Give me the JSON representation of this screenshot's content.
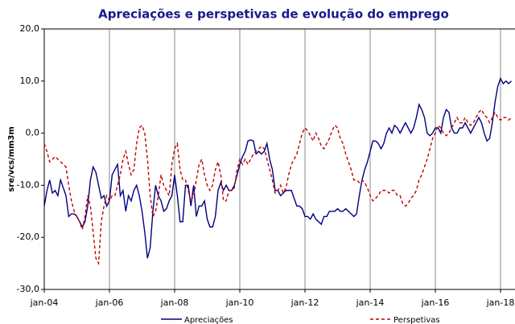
{
  "chart_data": {
    "type": "line",
    "title": "Apreciações e perspetivas de evolução do emprego",
    "y_label": "sre/vcs/mm3m",
    "categories": [
      "jan-04",
      null,
      null,
      null,
      null,
      null,
      null,
      null,
      null,
      null,
      null,
      null,
      null,
      null,
      null,
      null,
      null,
      null,
      null,
      null,
      null,
      null,
      null,
      null,
      "jan-06",
      null,
      null,
      null,
      null,
      null,
      null,
      null,
      null,
      null,
      null,
      null,
      null,
      null,
      null,
      null,
      null,
      null,
      null,
      null,
      null,
      null,
      null,
      null,
      "jan-08",
      null,
      null,
      null,
      null,
      null,
      null,
      null,
      null,
      null,
      null,
      null,
      null,
      null,
      null,
      null,
      null,
      null,
      null,
      null,
      null,
      null,
      null,
      null,
      "jan-10",
      null,
      null,
      null,
      null,
      null,
      null,
      null,
      null,
      null,
      null,
      null,
      null,
      null,
      null,
      null,
      null,
      null,
      null,
      null,
      null,
      null,
      null,
      null,
      "jan-12",
      null,
      null,
      null,
      null,
      null,
      null,
      null,
      null,
      null,
      null,
      null,
      null,
      null,
      null,
      null,
      null,
      null,
      null,
      null,
      null,
      null,
      null,
      null,
      "jan-14",
      null,
      null,
      null,
      null,
      null,
      null,
      null,
      null,
      null,
      null,
      null,
      null,
      null,
      null,
      null,
      null,
      null,
      null,
      null,
      null,
      null,
      null,
      null,
      "jan-16",
      null,
      null,
      null,
      null,
      null,
      null,
      null,
      null,
      null,
      null,
      null,
      null,
      null,
      null,
      null,
      null,
      null,
      null,
      null,
      null,
      null,
      null,
      null,
      "jan-18",
      null,
      null,
      null,
      null
    ],
    "series": [
      {
        "name": "Apreciações",
        "color": "#000080",
        "dash": false,
        "values": [
          -14,
          -11,
          -9,
          -11.5,
          -11,
          -12,
          -9,
          -10.5,
          -12,
          -16,
          -15.5,
          -15.5,
          -16,
          -17,
          -18,
          -17,
          -14,
          -9,
          -6.5,
          -7.5,
          -10,
          -12.5,
          -12,
          -14,
          -13,
          -8,
          -7,
          -6,
          -12,
          -11,
          -15,
          -12,
          -13,
          -11,
          -10,
          -12,
          -15,
          -19,
          -24,
          -22,
          -15,
          -10,
          -12,
          -13,
          -15,
          -14.5,
          -13,
          -12,
          -8,
          -12,
          -17,
          -17,
          -10,
          -10,
          -14,
          -10,
          -16,
          -14,
          -14,
          -13,
          -16.5,
          -18,
          -18,
          -16,
          -11,
          -9.5,
          -11,
          -10,
          -11,
          -11,
          -10,
          -8,
          -6,
          -4.5,
          -3.5,
          -1.5,
          -1.3,
          -1.5,
          -4,
          -3.5,
          -4,
          -3.5,
          -2,
          -5,
          -7,
          -11,
          -11,
          -12,
          -11.5,
          -11,
          -11,
          -11,
          -12.5,
          -14,
          -14,
          -14.5,
          -16,
          -16,
          -16.5,
          -15.5,
          -16.5,
          -17,
          -17.5,
          -16,
          -16,
          -15,
          -15,
          -15,
          -14.5,
          -15,
          -15,
          -14.5,
          -15,
          -15.5,
          -16,
          -15.5,
          -12,
          -9,
          -7,
          -5.5,
          -3.5,
          -1.5,
          -1.5,
          -2,
          -3,
          -2,
          0,
          1,
          0,
          1.5,
          1,
          0,
          1,
          2,
          1,
          0,
          1,
          3,
          5.5,
          4.5,
          3,
          0,
          -0.5,
          0,
          1,
          1,
          0,
          3,
          4.5,
          4,
          1,
          0,
          0,
          1,
          1,
          2,
          1,
          0,
          1,
          2,
          3,
          2,
          0,
          -1.5,
          -1,
          2,
          6,
          9,
          10.5,
          9.5,
          10,
          9.5,
          10
        ]
      },
      {
        "name": "Perspetivas",
        "color": "#c00000",
        "dash": true,
        "values": [
          -2,
          -3.5,
          -5.5,
          -5,
          -4.5,
          -5,
          -5.5,
          -6,
          -6.5,
          -10,
          -13,
          -15,
          -16,
          -17,
          -18.5,
          -16,
          -12,
          -14,
          -19,
          -24,
          -25,
          -17,
          -14,
          -12,
          -13,
          -12,
          -12,
          -10,
          -8,
          -5,
          -3.5,
          -6,
          -8,
          -7,
          -2,
          1,
          1.5,
          0,
          -5,
          -12,
          -16,
          -15,
          -12,
          -8,
          -10,
          -11,
          -12,
          -6,
          -3,
          -2,
          -7,
          -9,
          -9,
          -11,
          -13,
          -12,
          -9,
          -6,
          -5,
          -8,
          -10,
          -11,
          -10,
          -7,
          -5.5,
          -8,
          -13,
          -13,
          -11,
          -11,
          -10.5,
          -7,
          -5,
          -6,
          -5,
          -6,
          -5,
          -4,
          -3.5,
          -3,
          -2.5,
          -3,
          -5,
          -7,
          -9,
          -11.5,
          -11,
          -10,
          -11.5,
          -10.5,
          -8,
          -6,
          -5,
          -4,
          -2,
          0,
          1,
          0.5,
          -0.5,
          -1.5,
          0,
          -1,
          -2.5,
          -3,
          -2,
          -1,
          0.5,
          1.5,
          1,
          -1,
          -2,
          -4,
          -5.5,
          -7,
          -9,
          -9,
          -9.5,
          -9,
          -9.5,
          -10.5,
          -12,
          -13,
          -12.5,
          -12,
          -11,
          -11,
          -11,
          -11.5,
          -11,
          -11,
          -12,
          -12,
          -13.5,
          -14,
          -13.5,
          -12.5,
          -12,
          -11,
          -9,
          -8,
          -6.5,
          -5,
          -3,
          -1,
          0,
          1.5,
          1,
          0,
          -0.5,
          0,
          1,
          2,
          3,
          2,
          2,
          3,
          2,
          1.5,
          2,
          3,
          4,
          4.5,
          3.5,
          3,
          2,
          3,
          4,
          3,
          2.5,
          3,
          3,
          2.5,
          3
        ]
      }
    ],
    "ylim": [
      -30,
      20
    ],
    "yticks": [
      {
        "value": -30,
        "label": "-30,0"
      },
      {
        "value": -20,
        "label": "-20,0"
      },
      {
        "value": -10,
        "label": "-10,0"
      },
      {
        "value": 0,
        "label": "0,0"
      },
      {
        "value": 10,
        "label": "10,0"
      },
      {
        "value": 20,
        "label": "20,0"
      }
    ],
    "grid": "x",
    "legend": "bottom"
  }
}
